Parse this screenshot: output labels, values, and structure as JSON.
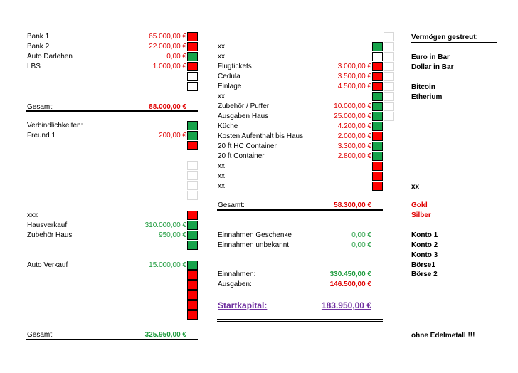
{
  "left": {
    "bank1": {
      "label": "Bank 1",
      "value": "65.000,00 €"
    },
    "bank2": {
      "label": "Bank 2",
      "value": "22.000,00 €"
    },
    "auto_darlehen": {
      "label": "Auto Darlehen",
      "value": "0,00 €"
    },
    "lbs": {
      "label": "LBS",
      "value": "1.000,00 €"
    },
    "gesamt1": {
      "label": "Gesamt:",
      "value": "88.000,00 €"
    },
    "verbindlichkeiten": {
      "label": "Verbindlichkeiten:"
    },
    "freund1": {
      "label": "Freund 1",
      "value": "200,00 €"
    },
    "xxx": {
      "label": "xxx"
    },
    "hausverkauf": {
      "label": "Hausverkauf",
      "value": "310.000,00 €"
    },
    "zubehoer_haus": {
      "label": "Zubehör Haus",
      "value": "950,00 €"
    },
    "auto_verkauf": {
      "label": "Auto Verkauf",
      "value": "15.000,00 €"
    },
    "gesamt2": {
      "label": "Gesamt:",
      "value": "325.950,00 €"
    }
  },
  "middle": {
    "xx1": {
      "label": "xx"
    },
    "xx2": {
      "label": "xx"
    },
    "flugtickets": {
      "label": "Flugtickets",
      "value": "3.000,00 €"
    },
    "cedula": {
      "label": "Cedula",
      "value": "3.500,00 €"
    },
    "einlage": {
      "label": "Einlage",
      "value": "4.500,00 €"
    },
    "xx3": {
      "label": "xx"
    },
    "zubehoer_puffer": {
      "label": "Zubehör / Puffer",
      "value": "10.000,00 €"
    },
    "ausgaben_haus": {
      "label": "Ausgaben Haus",
      "value": "25.000,00 €"
    },
    "kueche": {
      "label": "Küche",
      "value": "4.200,00 €"
    },
    "kosten_aufenthalt": {
      "label": "Kosten Aufenthalt bis Haus",
      "value": "2.000,00 €"
    },
    "hc_container": {
      "label": "20 ft HC Container",
      "value": "3.300,00 €"
    },
    "container": {
      "label": "20 ft Container",
      "value": "2.800,00 €"
    },
    "xx4": {
      "label": "xx"
    },
    "xx5": {
      "label": "xx"
    },
    "xx6": {
      "label": "xx"
    },
    "gesamt": {
      "label": "Gesamt:",
      "value": "58.300,00 €"
    },
    "einnahmen_geschenke": {
      "label": "Einnahmen Geschenke",
      "value": "0,00 €"
    },
    "einnahmen_unbekannt": {
      "label": "Einnahmen unbekannt:",
      "value": "0,00 €"
    },
    "einnahmen": {
      "label": "Einnahmen:",
      "value": "330.450,00 €"
    },
    "ausgaben": {
      "label": "Ausgaben:",
      "value": "146.500,00 €"
    },
    "startkapital": {
      "label": "Startkapital:",
      "value": "183.950,00 €"
    }
  },
  "right": {
    "title": "Vermögen gestreut:",
    "euro": "Euro in Bar",
    "dollar": "Dollar in Bar",
    "bitcoin": "Bitcoin",
    "etherium": "Etherium",
    "xx": "xx",
    "gold": "Gold",
    "silber": "Silber",
    "konto1": "Konto 1",
    "konto2": "Konto 2",
    "konto3": "Konto 3",
    "boerse1": "Börse1",
    "boerse2": "Börse 2",
    "note": "ohne Edelmetall !!!"
  },
  "colors": {
    "red": "#ff0000",
    "green": "#16a34a",
    "text_red": "#e00000",
    "text_green": "#1a9a3a",
    "purple": "#7030a0"
  }
}
